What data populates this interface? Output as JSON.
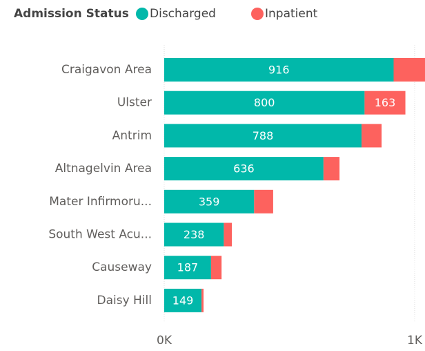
{
  "chart_data": {
    "type": "stacked_bar_horizontal",
    "legend_title": "Admission Status",
    "legend_position": "top-left",
    "categories": [
      "Craigavon Area",
      "Ulster",
      "Antrim",
      "Altnagelvin Area",
      "Mater Infirmoru...",
      "South West Acu...",
      "Causeway",
      "Daisy Hill"
    ],
    "series": [
      {
        "name": "Discharged",
        "color": "#01B8AA",
        "values": [
          916,
          800,
          788,
          636,
          359,
          238,
          187,
          149
        ]
      },
      {
        "name": "Inpatient",
        "color": "#FD625E",
        "values": [
          130,
          163,
          80,
          64,
          76,
          32,
          42,
          8
        ],
        "value_labels": [
          null,
          "163",
          null,
          null,
          null,
          null,
          null,
          null
        ]
      }
    ],
    "xlim": [
      0,
      1000
    ],
    "xticks": [
      {
        "value": 0,
        "label": "0K"
      },
      {
        "value": 1000,
        "label": "1K"
      }
    ],
    "grid": true
  }
}
